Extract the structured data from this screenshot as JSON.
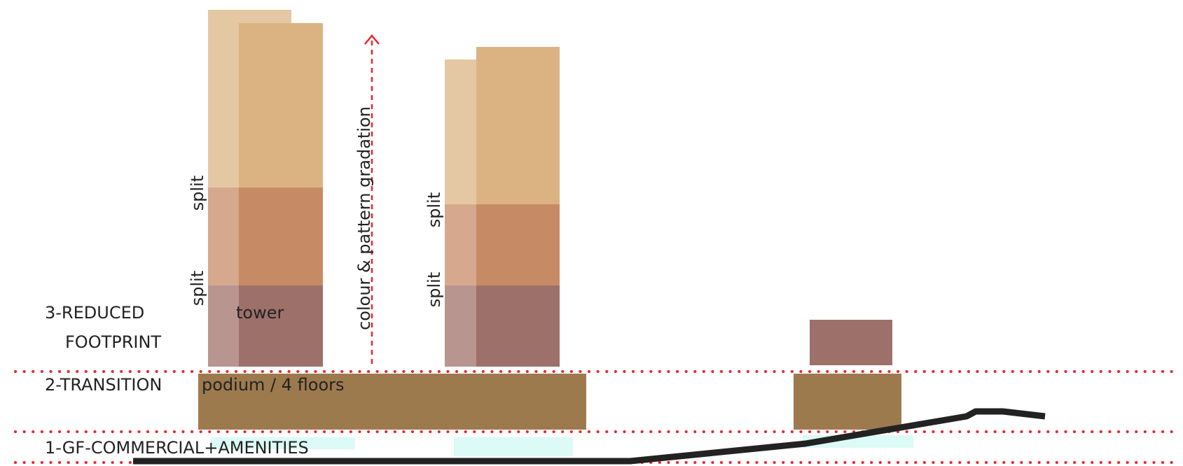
{
  "labels": {
    "level_3_line1": "3-REDUCED",
    "level_3_line2": "FOOTPRINT",
    "level_2": "2-TRANSITION",
    "level_1": "1-GF-COMMERCIAL+AMENITIES",
    "tower": "tower",
    "podium": "podium / 4 floors",
    "split": "split",
    "gradation_arrow": "colour & pattern gradation"
  },
  "colors": {
    "tower_top_light": "#e4c8a3",
    "tower_top": "#dbb383",
    "tower_mid_light": "#d6a88e",
    "tower_mid": "#c68b64",
    "tower_base_light": "#b99590",
    "tower_base": "#9e706a",
    "podium": "#9d7a4e",
    "amenities": "#dcfaf6",
    "guide_lines": "#e8262b",
    "terrain": "#222222",
    "text": "#222222"
  }
}
